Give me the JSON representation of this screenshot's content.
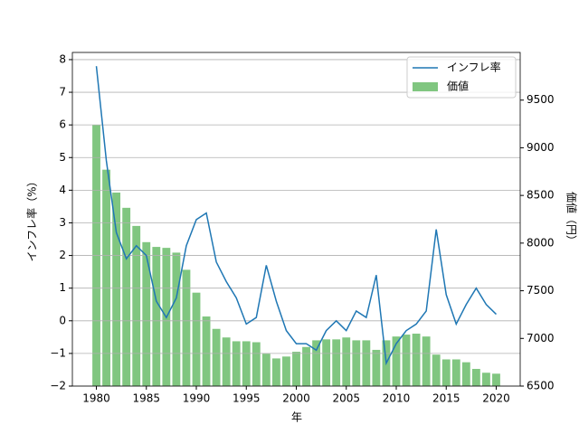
{
  "chart_data": {
    "type": "combo",
    "x_label": "年",
    "y_label": "インフレ率（%）",
    "y2_label": "価値（円）",
    "x": [
      1980,
      1981,
      1982,
      1983,
      1984,
      1985,
      1986,
      1987,
      1988,
      1989,
      1990,
      1991,
      1992,
      1993,
      1994,
      1995,
      1996,
      1997,
      1998,
      1999,
      2000,
      2001,
      2002,
      2003,
      2004,
      2005,
      2006,
      2007,
      2008,
      2009,
      2010,
      2011,
      2012,
      2013,
      2014,
      2015,
      2016,
      2017,
      2018,
      2019,
      2020
    ],
    "series": [
      {
        "name": "インフレ率",
        "type": "line",
        "color": "#1f77b4",
        "values": [
          7.8,
          4.9,
          2.7,
          1.9,
          2.3,
          2.0,
          0.6,
          0.1,
          0.7,
          2.3,
          3.1,
          3.3,
          1.8,
          1.2,
          0.7,
          -0.1,
          0.1,
          1.7,
          0.6,
          -0.3,
          -0.7,
          -0.7,
          -0.9,
          -0.3,
          0.0,
          -0.3,
          0.3,
          0.1,
          1.4,
          -1.3,
          -0.7,
          -0.3,
          -0.1,
          0.3,
          2.8,
          0.8,
          -0.1,
          0.5,
          1.0,
          0.5,
          0.2
        ]
      },
      {
        "name": "価値",
        "type": "bar",
        "axis": "y2",
        "color": "#2ca02c",
        "alpha": 0.6,
        "values": [
          9240,
          8770,
          8530,
          8370,
          8180,
          8010,
          7960,
          7950,
          7900,
          7720,
          7480,
          7230,
          7100,
          7010,
          6970,
          6970,
          6960,
          6840,
          6790,
          6810,
          6860,
          6910,
          6980,
          6990,
          6990,
          7010,
          6980,
          6980,
          6880,
          6980,
          7020,
          7040,
          7050,
          7020,
          6830,
          6780,
          6780,
          6750,
          6680,
          6640,
          6630
        ]
      }
    ],
    "xlim": [
      1977.6,
      2022.4
    ],
    "xticks": [
      1980,
      1985,
      1990,
      1995,
      2000,
      2005,
      2010,
      2015,
      2020
    ],
    "ylim": [
      -2,
      8.22
    ],
    "yticks": [
      {
        "value": -2,
        "label": "−2"
      },
      {
        "value": -1,
        "label": "−1"
      },
      0,
      1,
      2,
      3,
      4,
      5,
      6,
      7,
      8
    ],
    "y2lim": [
      6500,
      10000
    ],
    "y2ticks": [
      6500,
      7000,
      7500,
      8000,
      8500,
      9000,
      9500
    ],
    "grid": true,
    "legend": "upper-right",
    "bar_width": 0.8
  }
}
